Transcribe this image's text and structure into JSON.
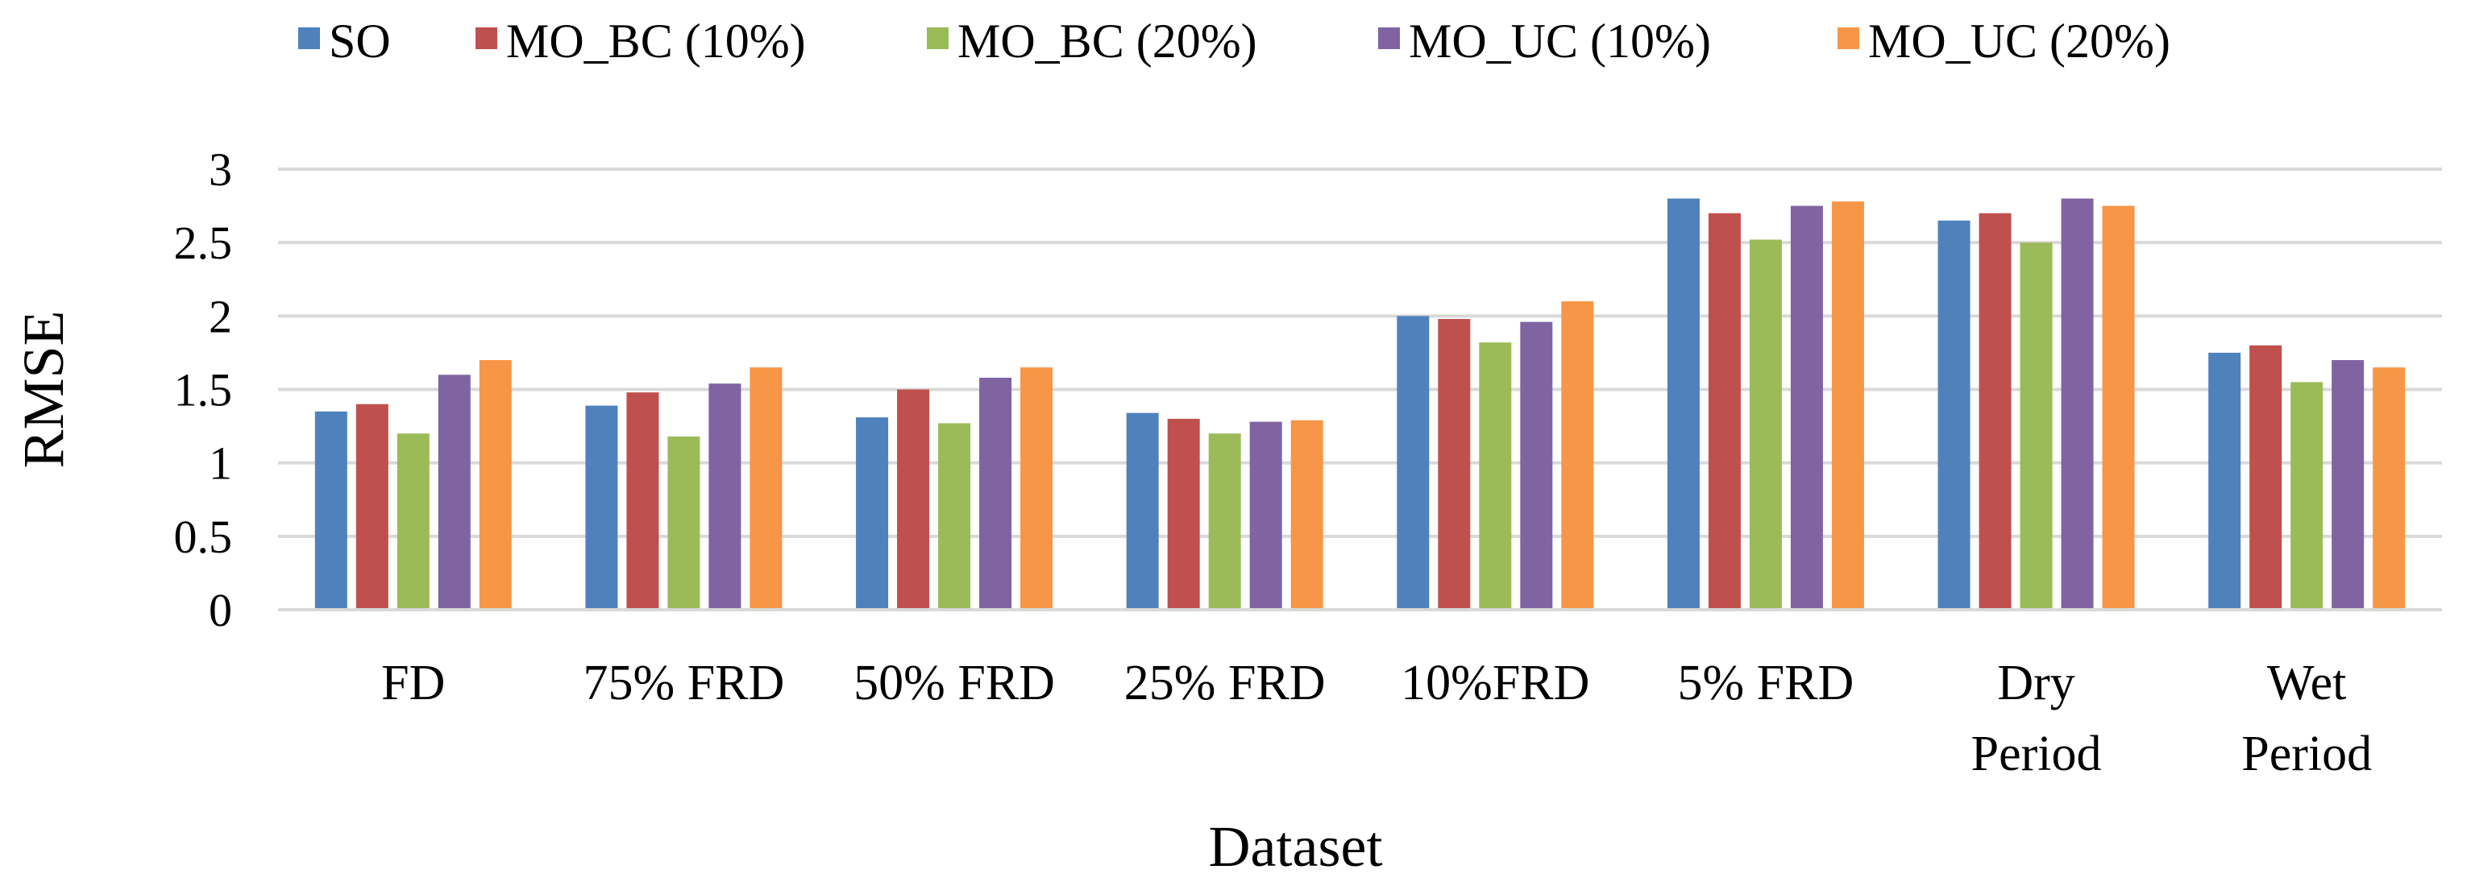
{
  "chart_data": {
    "type": "bar",
    "title": "",
    "xlabel": "Dataset",
    "ylabel": "RMSE",
    "ylim": [
      0,
      3
    ],
    "yticks": [
      "0",
      "0.5",
      "1",
      "1.5",
      "2",
      "2.5",
      "3"
    ],
    "grid": true,
    "legend_position": "top",
    "categories": [
      [
        "FD"
      ],
      [
        "75% FRD"
      ],
      [
        "50% FRD"
      ],
      [
        "25% FRD"
      ],
      [
        "10%FRD"
      ],
      [
        "5% FRD"
      ],
      [
        "Dry",
        "Period"
      ],
      [
        "Wet",
        "Period"
      ]
    ],
    "series": [
      {
        "name": "SO",
        "color": "#4f81bd",
        "values": [
          1.35,
          1.39,
          1.31,
          1.34,
          2.0,
          2.8,
          2.65,
          1.75
        ]
      },
      {
        "name": "MO_BC (10%)",
        "color": "#c0504d",
        "values": [
          1.4,
          1.48,
          1.5,
          1.3,
          1.98,
          2.7,
          2.7,
          1.8
        ]
      },
      {
        "name": "MO_BC (20%)",
        "color": "#9bbb59",
        "values": [
          1.2,
          1.18,
          1.27,
          1.2,
          1.82,
          2.52,
          2.5,
          1.55
        ]
      },
      {
        "name": "MO_UC (10%)",
        "color": "#8064a2",
        "values": [
          1.6,
          1.54,
          1.58,
          1.28,
          1.96,
          2.75,
          2.8,
          1.7
        ]
      },
      {
        "name": "MO_UC (20%)",
        "color": "#f79646",
        "values": [
          1.7,
          1.65,
          1.65,
          1.29,
          2.1,
          2.78,
          2.75,
          1.65
        ]
      }
    ]
  }
}
